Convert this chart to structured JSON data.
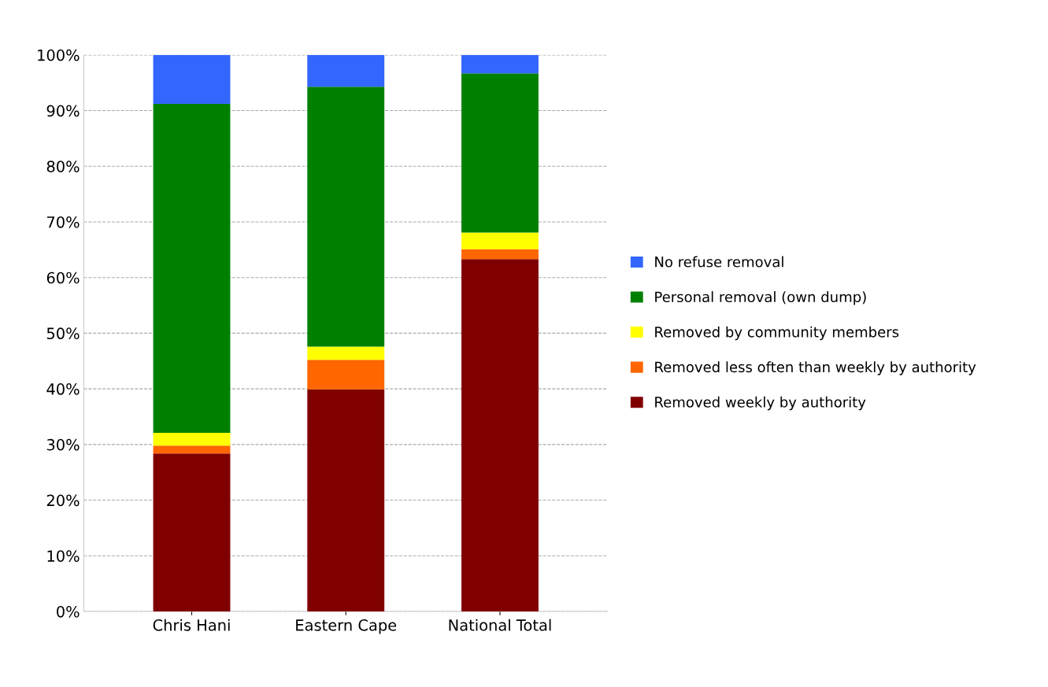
{
  "chart_data": {
    "type": "bar",
    "stacked": true,
    "categories": [
      "Chris Hani",
      "Eastern Cape",
      "National Total"
    ],
    "series": [
      {
        "name": "Removed weekly by authority",
        "color": "#800000",
        "values": [
          28.4,
          39.9,
          63.3
        ]
      },
      {
        "name": "Removed less often than weekly by authority",
        "color": "#ff6600",
        "values": [
          1.4,
          5.3,
          1.8
        ]
      },
      {
        "name": "Removed by community members",
        "color": "#ffff00",
        "values": [
          2.3,
          2.4,
          3.0
        ]
      },
      {
        "name": "Personal removal (own dump)",
        "color": "#008000",
        "values": [
          59.1,
          46.7,
          28.6
        ]
      },
      {
        "name": "No refuse removal",
        "color": "#3366ff",
        "values": [
          8.8,
          5.7,
          3.3
        ]
      }
    ],
    "ylim": [
      0,
      100
    ],
    "yticks": [
      {
        "value": 0,
        "label": "0%"
      },
      {
        "value": 10,
        "label": "10%"
      },
      {
        "value": 20,
        "label": "20%"
      },
      {
        "value": 30,
        "label": "30%"
      },
      {
        "value": 40,
        "label": "40%"
      },
      {
        "value": 50,
        "label": "50%"
      },
      {
        "value": 60,
        "label": "60%"
      },
      {
        "value": 70,
        "label": "70%"
      },
      {
        "value": 80,
        "label": "80%"
      },
      {
        "value": 90,
        "label": "90%"
      },
      {
        "value": 100,
        "label": "100%"
      }
    ],
    "grid": "y",
    "legend": "right"
  }
}
